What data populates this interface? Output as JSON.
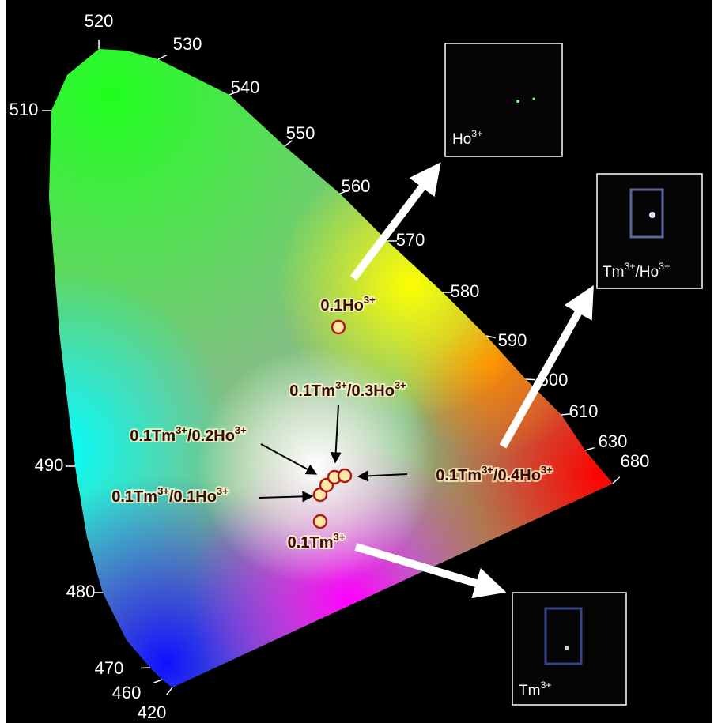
{
  "wavelength_labels": [
    "520",
    "530",
    "540",
    "550",
    "560",
    "570",
    "580",
    "590",
    "600",
    "610",
    "630",
    "680",
    "510",
    "490",
    "480",
    "470",
    "460",
    "420"
  ],
  "samples": [
    {
      "parts": [
        "0.1Ho",
        "3+"
      ]
    },
    {
      "parts": [
        "0.1Tm",
        "3+",
        "/0.3Ho",
        "3+"
      ]
    },
    {
      "parts": [
        "0.1Tm",
        "3+",
        "/0.2Ho",
        "3+"
      ]
    },
    {
      "parts": [
        "0.1Tm",
        "3+",
        "/0.1Ho",
        "3+"
      ]
    },
    {
      "parts": [
        "0.1Tm",
        "3+",
        "/0.4Ho",
        "3+"
      ]
    },
    {
      "parts": [
        "0.1Tm",
        "3+"
      ]
    }
  ],
  "insets": [
    {
      "parts": [
        "Ho",
        "3+"
      ]
    },
    {
      "parts": [
        "Tm",
        "3+",
        "/Ho",
        "3+"
      ]
    },
    {
      "parts": [
        "Tm",
        "3+"
      ]
    }
  ]
}
